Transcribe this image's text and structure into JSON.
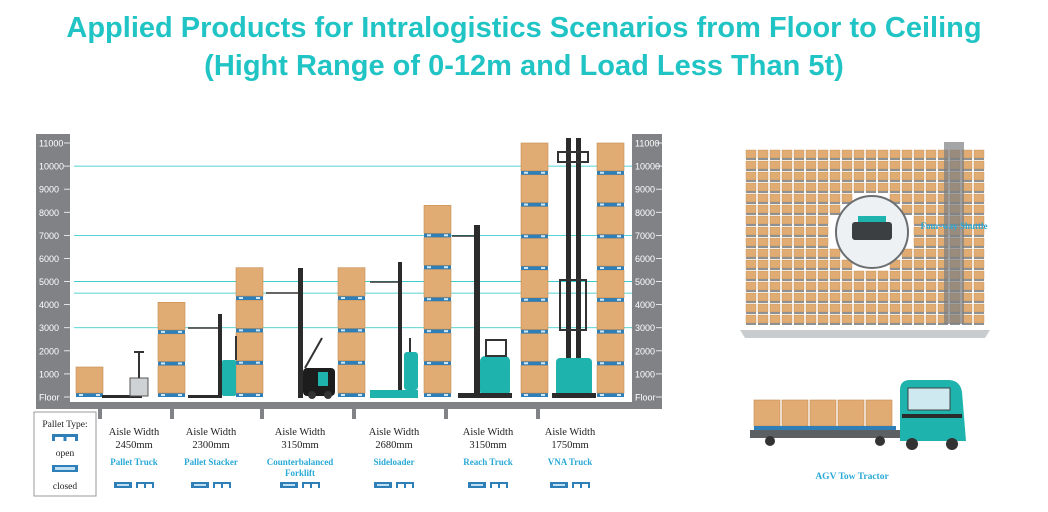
{
  "title_line1": "Applied Products for Intralogistics Scenarios from Floor to Ceiling",
  "title_line2": "(Hight Range of 0-12m and Load Less Than 5t)",
  "colors": {
    "accent": "#21c4c4",
    "ruler": "#808285",
    "box": "#e0ac73",
    "pallet": "#2e7fb8",
    "label": "#2aa9d6",
    "truck": "#1fb3ad"
  },
  "height_scale": {
    "labels": [
      "Floor",
      "1000",
      "2000",
      "3000",
      "4000",
      "5000",
      "6000",
      "7000",
      "8000",
      "9000",
      "10000",
      "11000"
    ],
    "values": [
      0,
      1000,
      2000,
      3000,
      4000,
      5000,
      6000,
      7000,
      8000,
      9000,
      10000,
      11000
    ],
    "max": 11000,
    "guide_lines": [
      3000,
      4500,
      5000,
      7000,
      10000
    ]
  },
  "stacks": [
    {
      "top": 1300,
      "boxes": 1
    },
    {
      "top": 4100,
      "boxes": 3
    },
    {
      "top": 5600,
      "boxes": 4
    },
    {
      "top": 5600,
      "boxes": 4
    },
    {
      "top": 8300,
      "boxes": 6
    },
    {
      "top": 11000,
      "boxes": 8
    },
    {
      "top": 11000,
      "boxes": 8
    }
  ],
  "pallet_legend": {
    "title": "Pallet Type:",
    "open": "open",
    "closed": "closed"
  },
  "products": [
    {
      "aisle": "Aisle Width",
      "width": "2450mm",
      "name": "Pallet Truck",
      "name2": ""
    },
    {
      "aisle": "Aisle Width",
      "width": "2300mm",
      "name": "Pallet Stacker",
      "name2": ""
    },
    {
      "aisle": "Aisle Width",
      "width": "3150mm",
      "name": "Counterbalanced",
      "name2": "Forklift"
    },
    {
      "aisle": "Aisle Width",
      "width": "2680mm",
      "name": "Sideloader",
      "name2": ""
    },
    {
      "aisle": "Aisle Width",
      "width": "3150mm",
      "name": "Reach Truck",
      "name2": ""
    },
    {
      "aisle": "Aisle Width",
      "width": "1750mm",
      "name": "VNA Truck",
      "name2": ""
    }
  ],
  "shuttle_label": "Four-way Shuttle",
  "tractor_label": "AGV Tow Tractor"
}
